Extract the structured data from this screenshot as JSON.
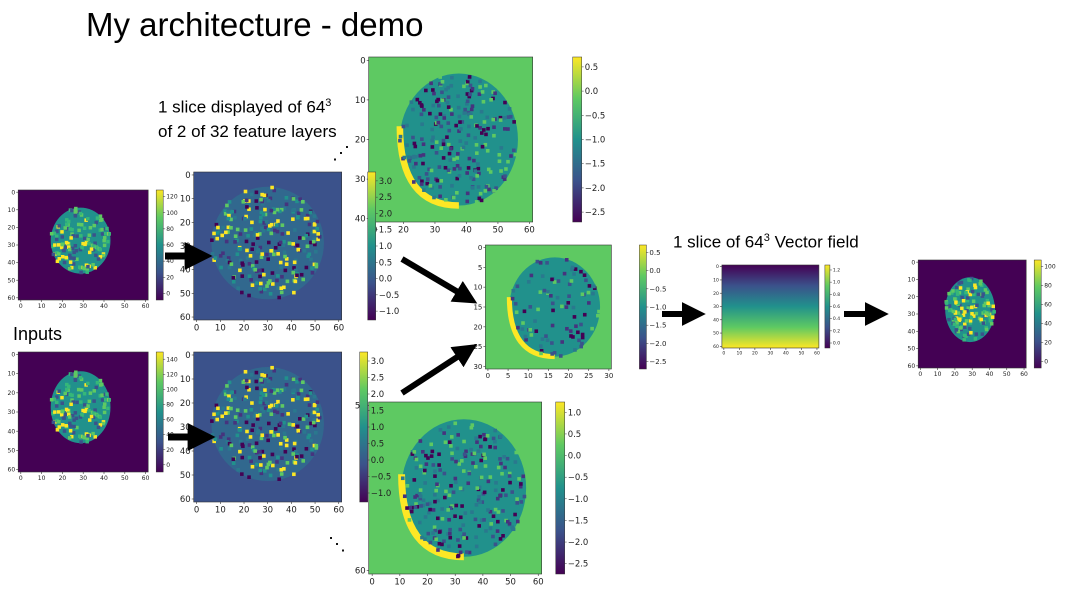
{
  "title": "My architecture - demo",
  "captions": {
    "slice_line1": "1 slice displayed of 64",
    "slice_sup": "3",
    "slice_line2": "of 2 of 32 feature layers",
    "vector_pre": "1 slice of 64",
    "vector_sup": "3",
    "vector_post": " Vector field",
    "inputs": "Inputs",
    "ellipsis": "⋰"
  },
  "colors": {
    "viridis_dark": "#440154",
    "viridis_blue": "#3b528b",
    "viridis_teal": "#21918c",
    "viridis_green": "#5ec962",
    "viridis_yellow": "#fde725",
    "arrow": "#000000"
  },
  "panels": [
    {
      "id": "input1",
      "axis_x": [
        "0",
        "10",
        "20",
        "30",
        "40",
        "50",
        "60"
      ],
      "axis_y": [
        "0",
        "10",
        "20",
        "30",
        "40",
        "50",
        "60"
      ],
      "colorbar": [
        "120",
        "100",
        "80",
        "60",
        "40",
        "20",
        "0"
      ],
      "style": "brain-dark"
    },
    {
      "id": "input2",
      "axis_x": [
        "0",
        "10",
        "20",
        "30",
        "40",
        "50",
        "60"
      ],
      "axis_y": [
        "0",
        "10",
        "20",
        "30",
        "40",
        "50",
        "60"
      ],
      "colorbar": [
        "140",
        "120",
        "100",
        "80",
        "60",
        "40",
        "20",
        "0"
      ],
      "style": "brain-dark"
    },
    {
      "id": "feat1",
      "axis_x": [
        "0",
        "10",
        "20",
        "30",
        "40",
        "50",
        "60"
      ],
      "axis_y": [
        "0",
        "10",
        "20",
        "30",
        "40",
        "50",
        "60"
      ],
      "colorbar": [
        "3.0",
        "2.5",
        "2.0",
        "1.5",
        "1.0",
        "0.5",
        "0.0",
        "−0.5",
        "−1.0"
      ],
      "style": "feat-blue"
    },
    {
      "id": "feat2",
      "axis_x": [
        "0",
        "10",
        "20",
        "30",
        "40",
        "50",
        "60"
      ],
      "axis_y": [
        "0",
        "10",
        "20",
        "30",
        "40",
        "50",
        "60"
      ],
      "colorbar": [
        "3.0",
        "2.5",
        "2.0",
        "1.5",
        "1.0",
        "0.5",
        "0.0",
        "−0.5",
        "−1.0"
      ],
      "style": "feat-blue"
    },
    {
      "id": "feat_top",
      "axis_x": [
        "10",
        "20",
        "30",
        "40",
        "50",
        "60"
      ],
      "axis_y": [
        "0",
        "10",
        "20",
        "30",
        "40"
      ],
      "colorbar": [
        "0.5",
        "0.0",
        "−0.5",
        "−1.0",
        "−1.5",
        "−2.0",
        "−2.5"
      ],
      "style": "feat-green"
    },
    {
      "id": "feat_bottom",
      "axis_x": [
        "0",
        "10",
        "20",
        "30",
        "40",
        "50",
        "60"
      ],
      "axis_y": [
        "50",
        "60"
      ],
      "colorbar": [
        "1.0",
        "0.5",
        "0.0",
        "−0.5",
        "−1.0",
        "−1.5",
        "−2.0",
        "−2.5"
      ],
      "style": "feat-green"
    },
    {
      "id": "feat_mid",
      "axis_x": [
        "0",
        "5",
        "10",
        "15",
        "20",
        "25",
        "30"
      ],
      "axis_y": [
        "0",
        "5",
        "10",
        "15",
        "20",
        "25",
        "30"
      ],
      "colorbar": [
        "0.5",
        "0.0",
        "−0.5",
        "−1.0",
        "−1.5",
        "−2.0",
        "−2.5"
      ],
      "style": "feat-green-small"
    },
    {
      "id": "vector",
      "axis_x": [
        "0",
        "10",
        "20",
        "30",
        "40",
        "50",
        "60"
      ],
      "axis_y": [
        "0",
        "10",
        "20",
        "30",
        "40",
        "50",
        "60"
      ],
      "colorbar": [
        "1.2",
        "1.0",
        "0.8",
        "0.6",
        "0.4",
        "0.2",
        "0.0"
      ],
      "style": "gradient"
    },
    {
      "id": "output",
      "axis_x": [
        "0",
        "10",
        "20",
        "30",
        "40",
        "50",
        "60"
      ],
      "axis_y": [
        "0",
        "10",
        "20",
        "30",
        "40",
        "50",
        "60"
      ],
      "colorbar": [
        "100",
        "80",
        "60",
        "40",
        "20",
        "0"
      ],
      "style": "brain-dark"
    }
  ]
}
